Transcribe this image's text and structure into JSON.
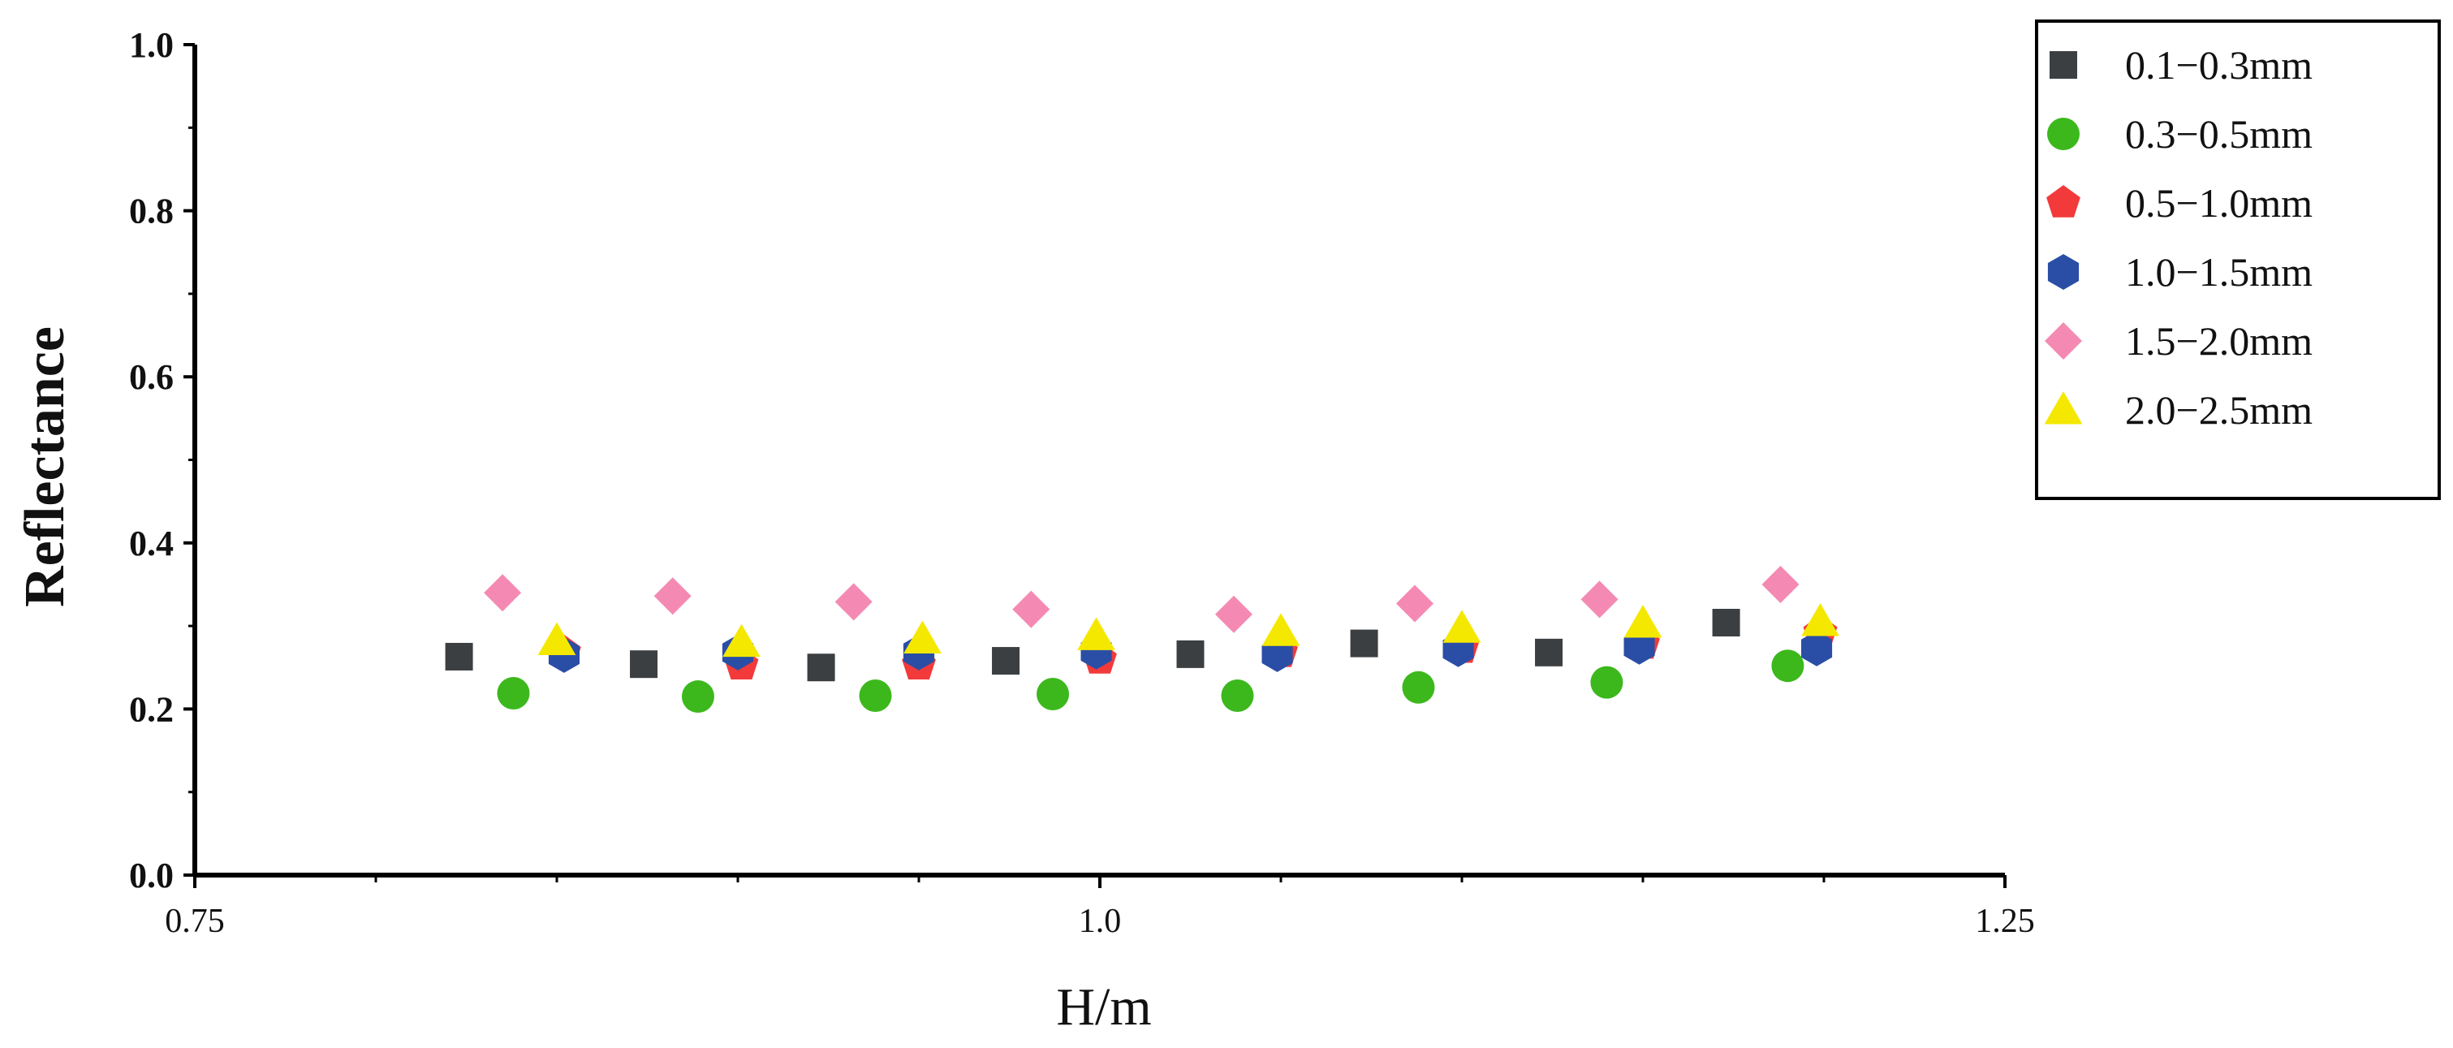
{
  "chart_data": {
    "type": "scatter",
    "xlabel": "H/m",
    "ylabel": "Reflectance",
    "xlim": [
      0.75,
      1.25
    ],
    "ylim": [
      0.0,
      1.0
    ],
    "x_ticks": [
      {
        "value": 0.75,
        "label": "0.75"
      },
      {
        "value": 1.0,
        "label": "1.0"
      },
      {
        "value": 1.25,
        "label": "1.25"
      }
    ],
    "y_ticks": [
      {
        "value": 0.0,
        "label": "0.0"
      },
      {
        "value": 0.2,
        "label": "0.2"
      },
      {
        "value": 0.4,
        "label": "0.4"
      },
      {
        "value": 0.6,
        "label": "0.6"
      },
      {
        "value": 0.8,
        "label": "0.8"
      },
      {
        "value": 1.0,
        "label": "1.0"
      }
    ],
    "grid": false,
    "legend_placement": "top-right, outside plot",
    "series": [
      {
        "name": "0.1−0.3mm",
        "marker": "square",
        "color": "#3c3f41",
        "x": [
          0.823,
          0.874,
          0.923,
          0.974,
          1.025,
          1.073,
          1.124,
          1.173
        ],
        "y": [
          0.263,
          0.254,
          0.25,
          0.258,
          0.266,
          0.279,
          0.268,
          0.304
        ]
      },
      {
        "name": "0.3−0.5mm",
        "marker": "circle",
        "color": "#3cb81c",
        "x": [
          0.838,
          0.889,
          0.938,
          0.987,
          1.038,
          1.088,
          1.14,
          1.19
        ],
        "y": [
          0.219,
          0.215,
          0.216,
          0.218,
          0.216,
          0.226,
          0.232,
          0.252
        ]
      },
      {
        "name": "0.5−1.0mm",
        "marker": "pentagon",
        "color": "#f23a3a",
        "x": [
          0.852,
          0.901,
          0.95,
          1.0,
          1.05,
          1.1,
          1.15,
          1.199
        ],
        "y": [
          0.268,
          0.253,
          0.253,
          0.26,
          0.268,
          0.273,
          0.278,
          0.292
        ]
      },
      {
        "name": "1.0−1.5mm",
        "marker": "hexagon",
        "color": "#2a4ea5",
        "x": [
          0.852,
          0.9,
          0.95,
          0.999,
          1.049,
          1.099,
          1.149,
          1.198
        ],
        "y": [
          0.265,
          0.268,
          0.268,
          0.269,
          0.266,
          0.272,
          0.275,
          0.273
        ]
      },
      {
        "name": "1.5−2.0mm",
        "marker": "diamond",
        "color": "#f48ab3",
        "x": [
          0.835,
          0.882,
          0.932,
          0.981,
          1.037,
          1.087,
          1.138,
          1.188
        ],
        "y": [
          0.34,
          0.336,
          0.329,
          0.32,
          0.314,
          0.327,
          0.332,
          0.35
        ]
      },
      {
        "name": "2.0−2.5mm",
        "marker": "triangle",
        "color": "#f5e800",
        "x": [
          0.85,
          0.901,
          0.951,
          0.999,
          1.05,
          1.1,
          1.15,
          1.199
        ],
        "y": [
          0.282,
          0.28,
          0.284,
          0.288,
          0.293,
          0.297,
          0.303,
          0.305
        ]
      }
    ]
  }
}
